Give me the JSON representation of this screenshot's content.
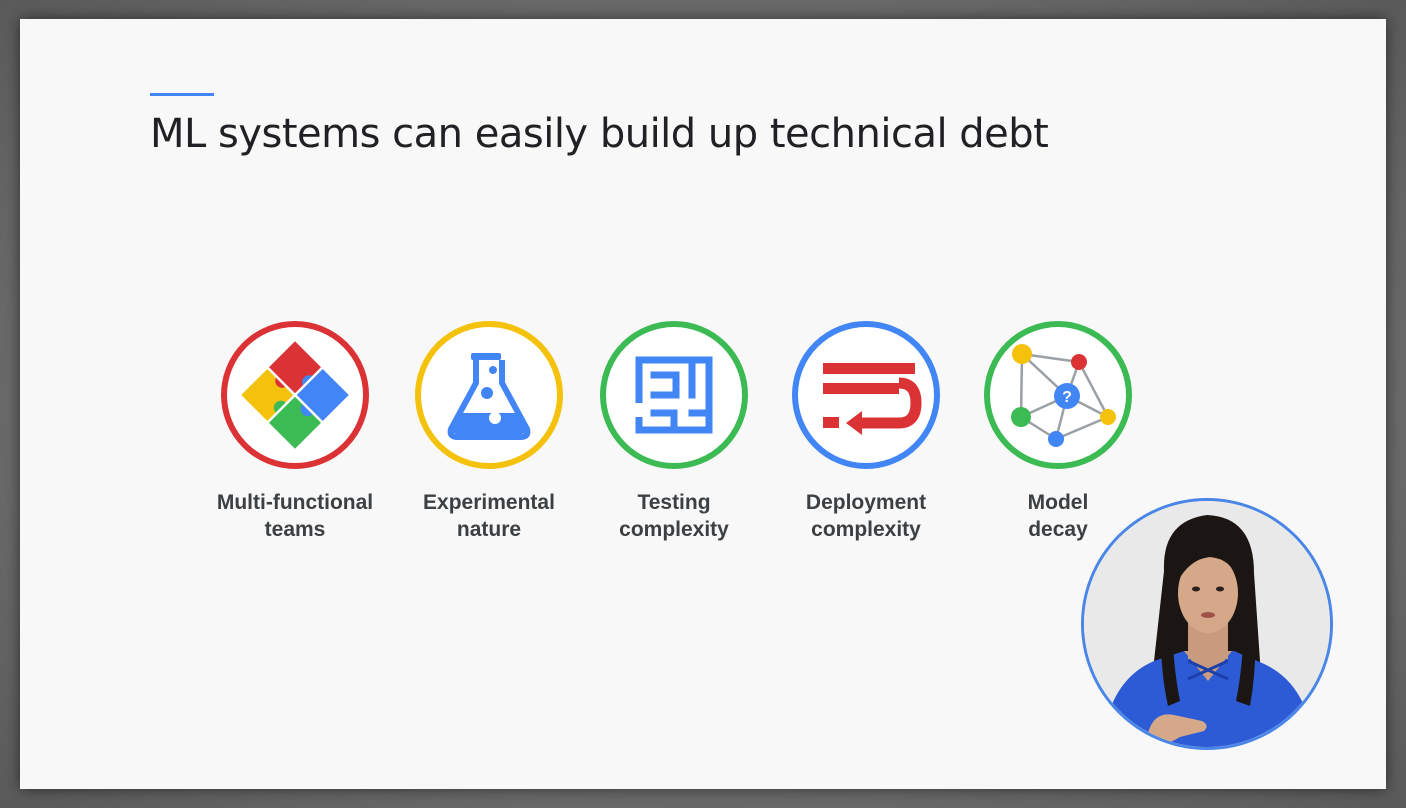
{
  "slide": {
    "title": "ML systems can easily build up technical debt",
    "accent_color": "#4285f4"
  },
  "items": [
    {
      "line1": "Multi-functional",
      "line2": "teams",
      "icon": "puzzle-icon",
      "ring_color": "#db3236"
    },
    {
      "line1": "Experimental",
      "line2": "nature",
      "icon": "flask-icon",
      "ring_color": "#f4c20d"
    },
    {
      "line1": "Testing",
      "line2": "complexity",
      "icon": "maze-icon",
      "ring_color": "#3cba54"
    },
    {
      "line1": "Deployment",
      "line2": "complexity",
      "icon": "rollback-road-icon",
      "ring_color": "#4285f4"
    },
    {
      "line1": "Model",
      "line2": "decay",
      "icon": "network-question-icon",
      "ring_color": "#3cba54"
    }
  ],
  "presenter": {
    "icon": "presenter-video",
    "ring_color": "#4a86e8"
  }
}
